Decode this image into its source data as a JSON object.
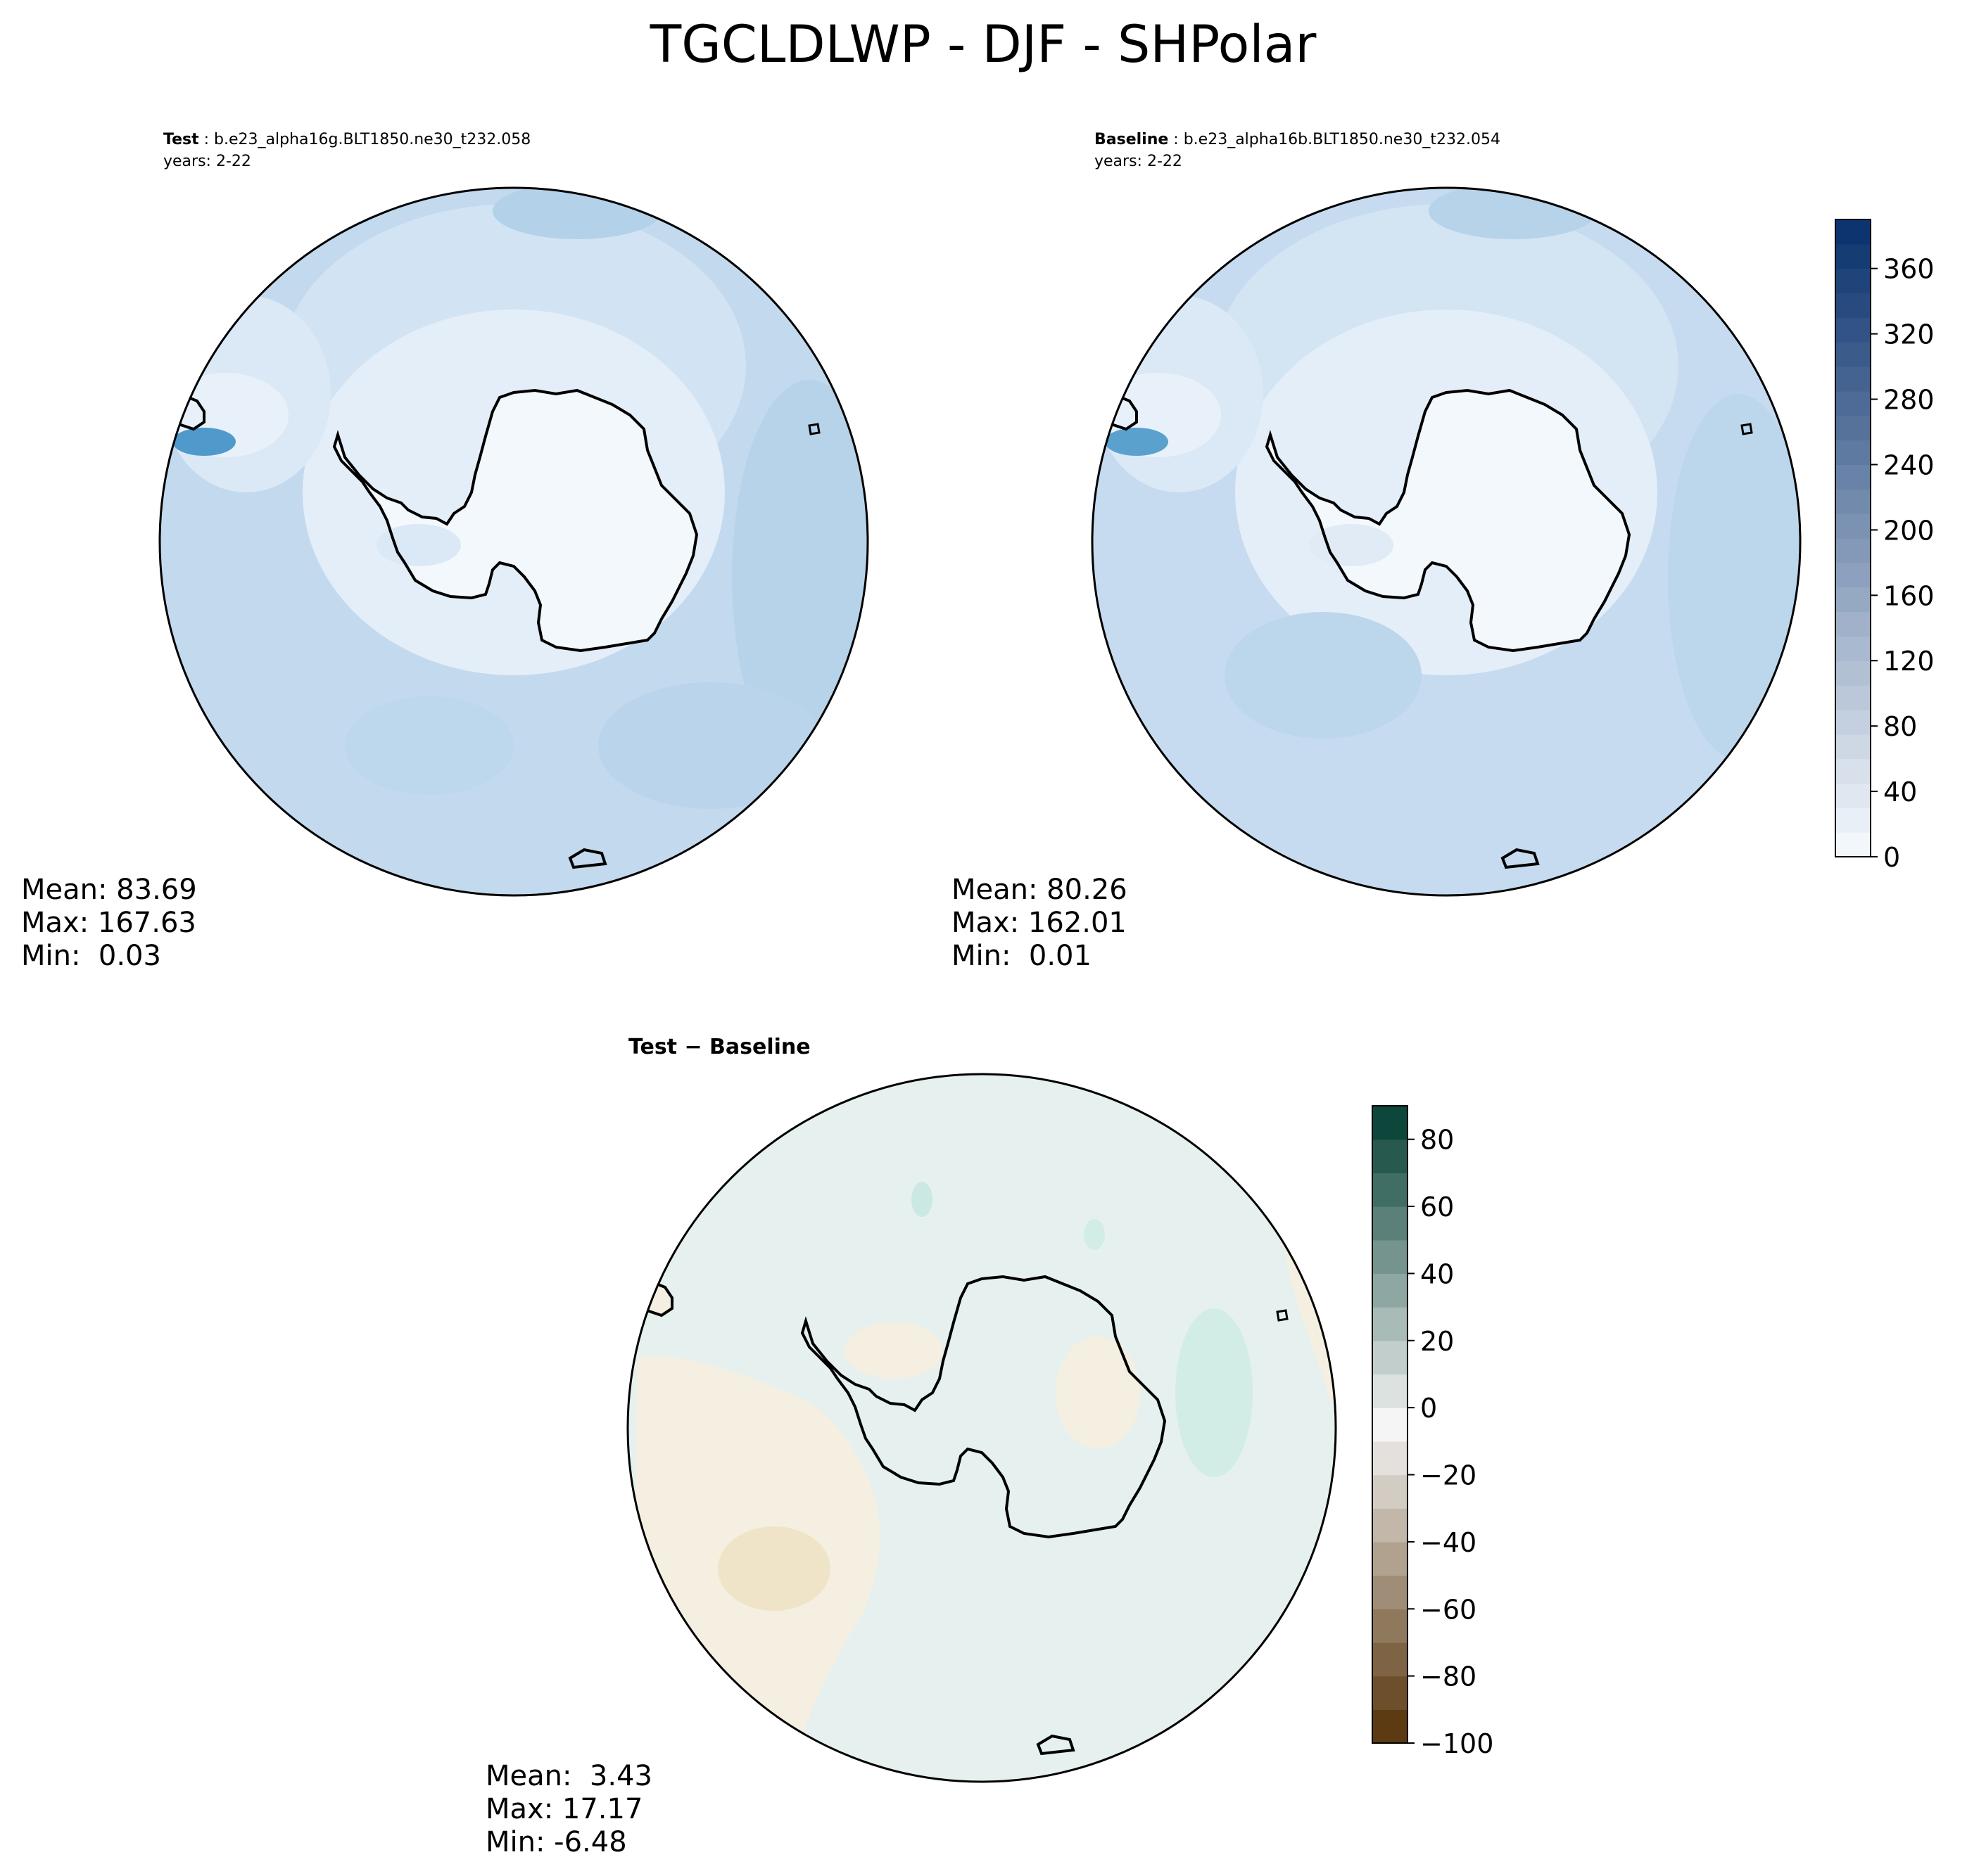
{
  "title": "TGCLDLWP - DJF - SHPolar",
  "panels": {
    "test": {
      "label": "Test",
      "case": "b.e23_alpha16g.BLT1850.ne30_t232.058",
      "years": "years: 2-22",
      "stats": {
        "mean": "Mean: 83.69",
        "max": "Max: 167.63",
        "min": "Min:  0.03"
      }
    },
    "baseline": {
      "label": "Baseline",
      "case": "b.e23_alpha16b.BLT1850.ne30_t232.054",
      "years": "years: 2-22",
      "stats": {
        "mean": "Mean: 80.26",
        "max": "Max: 162.01",
        "min": "Min:  0.01"
      }
    },
    "diff": {
      "label": "Test − Baseline",
      "stats": {
        "mean": "Mean:  3.43",
        "max": "Max: 17.17",
        "min": "Min: -6.48"
      }
    }
  },
  "colorbars": {
    "main": {
      "colormap": "Blues",
      "min": 0,
      "max": 390,
      "step": 15,
      "ticks": [
        "0",
        "40",
        "80",
        "120",
        "160",
        "200",
        "240",
        "280",
        "320",
        "360"
      ],
      "tick_values": [
        0,
        40,
        80,
        120,
        160,
        200,
        240,
        280,
        320,
        360
      ],
      "colors": [
        "#f7fbff",
        "#08306b"
      ]
    },
    "diff": {
      "colormap": "BrBG",
      "min": -100,
      "max": 90,
      "step": 10,
      "ticks": [
        "−100",
        "−80",
        "−60",
        "−40",
        "−20",
        "0",
        "20",
        "40",
        "60",
        "80"
      ],
      "tick_values": [
        -100,
        -80,
        -60,
        -40,
        -20,
        0,
        20,
        40,
        60,
        80
      ],
      "colors": [
        "#543005",
        "#f5f5f5",
        "#003c30"
      ]
    }
  },
  "colors": {
    "map_field_test": "#c6dbef",
    "map_field_baseline": "#c8dcef",
    "antarctica": "#f3f8fd",
    "diff_positive": "#e6f1ef",
    "diff_negative": "#f4efe0",
    "coastline": "#000000"
  }
}
